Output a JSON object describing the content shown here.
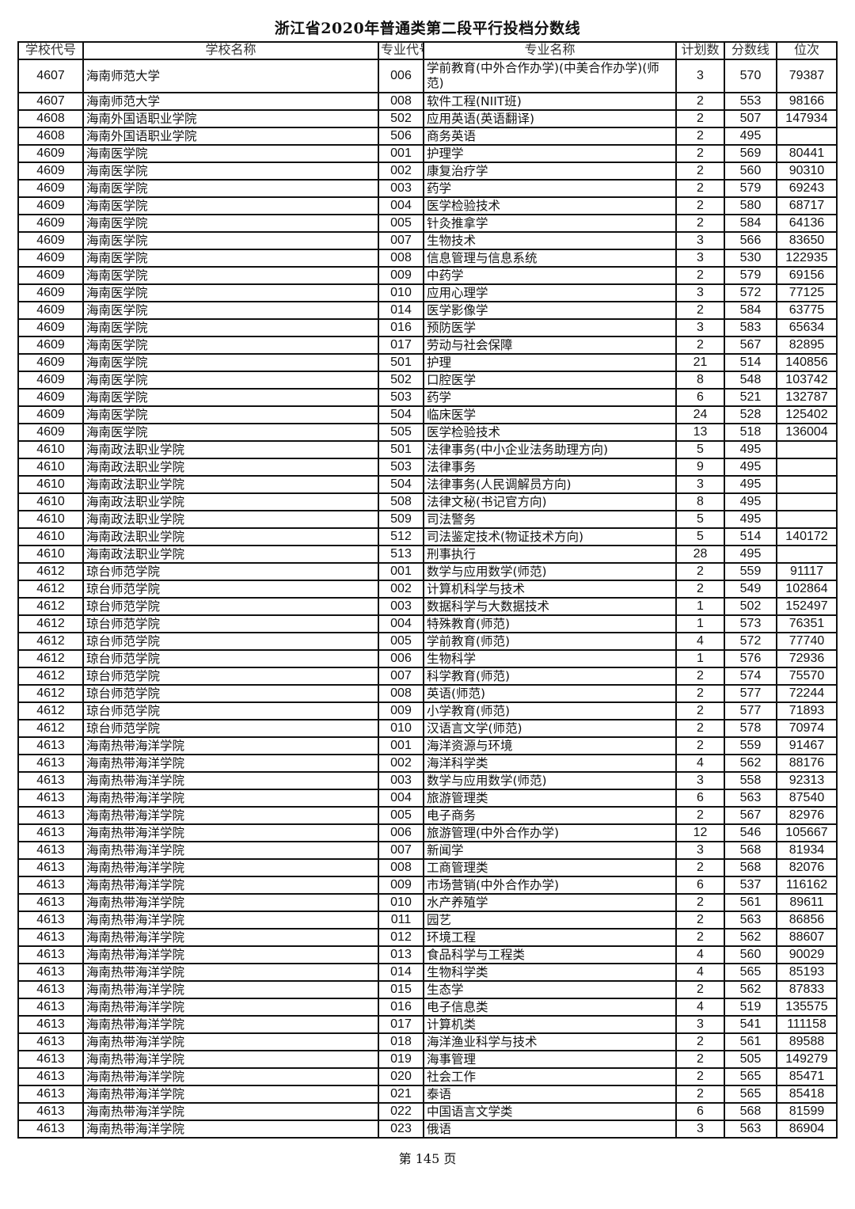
{
  "title": "浙江省2020年普通类第二段平行投档分数线",
  "columns": [
    "学校代号",
    "学校名称",
    "专业代号",
    "专业名称",
    "计划数",
    "分数线",
    "位次"
  ],
  "rows": [
    [
      "4607",
      "海南师范大学",
      "006",
      "学前教育(中外合作办学)(中美合作办学)(师范)",
      "3",
      "570",
      "79387"
    ],
    [
      "4607",
      "海南师范大学",
      "008",
      "软件工程(NIIT班)",
      "2",
      "553",
      "98166"
    ],
    [
      "4608",
      "海南外国语职业学院",
      "502",
      "应用英语(英语翻译)",
      "2",
      "507",
      "147934"
    ],
    [
      "4608",
      "海南外国语职业学院",
      "506",
      "商务英语",
      "2",
      "495",
      ""
    ],
    [
      "4609",
      "海南医学院",
      "001",
      "护理学",
      "2",
      "569",
      "80441"
    ],
    [
      "4609",
      "海南医学院",
      "002",
      "康复治疗学",
      "2",
      "560",
      "90310"
    ],
    [
      "4609",
      "海南医学院",
      "003",
      "药学",
      "2",
      "579",
      "69243"
    ],
    [
      "4609",
      "海南医学院",
      "004",
      "医学检验技术",
      "2",
      "580",
      "68717"
    ],
    [
      "4609",
      "海南医学院",
      "005",
      "针灸推拿学",
      "2",
      "584",
      "64136"
    ],
    [
      "4609",
      "海南医学院",
      "007",
      "生物技术",
      "3",
      "566",
      "83650"
    ],
    [
      "4609",
      "海南医学院",
      "008",
      "信息管理与信息系统",
      "3",
      "530",
      "122935"
    ],
    [
      "4609",
      "海南医学院",
      "009",
      "中药学",
      "2",
      "579",
      "69156"
    ],
    [
      "4609",
      "海南医学院",
      "010",
      "应用心理学",
      "3",
      "572",
      "77125"
    ],
    [
      "4609",
      "海南医学院",
      "014",
      "医学影像学",
      "2",
      "584",
      "63775"
    ],
    [
      "4609",
      "海南医学院",
      "016",
      "预防医学",
      "3",
      "583",
      "65634"
    ],
    [
      "4609",
      "海南医学院",
      "017",
      "劳动与社会保障",
      "2",
      "567",
      "82895"
    ],
    [
      "4609",
      "海南医学院",
      "501",
      "护理",
      "21",
      "514",
      "140856"
    ],
    [
      "4609",
      "海南医学院",
      "502",
      "口腔医学",
      "8",
      "548",
      "103742"
    ],
    [
      "4609",
      "海南医学院",
      "503",
      "药学",
      "6",
      "521",
      "132787"
    ],
    [
      "4609",
      "海南医学院",
      "504",
      "临床医学",
      "24",
      "528",
      "125402"
    ],
    [
      "4609",
      "海南医学院",
      "505",
      "医学检验技术",
      "13",
      "518",
      "136004"
    ],
    [
      "4610",
      "海南政法职业学院",
      "501",
      "法律事务(中小企业法务助理方向)",
      "5",
      "495",
      ""
    ],
    [
      "4610",
      "海南政法职业学院",
      "503",
      "法律事务",
      "9",
      "495",
      ""
    ],
    [
      "4610",
      "海南政法职业学院",
      "504",
      "法律事务(人民调解员方向)",
      "3",
      "495",
      ""
    ],
    [
      "4610",
      "海南政法职业学院",
      "508",
      "法律文秘(书记官方向)",
      "8",
      "495",
      ""
    ],
    [
      "4610",
      "海南政法职业学院",
      "509",
      "司法警务",
      "5",
      "495",
      ""
    ],
    [
      "4610",
      "海南政法职业学院",
      "512",
      "司法鉴定技术(物证技术方向)",
      "5",
      "514",
      "140172"
    ],
    [
      "4610",
      "海南政法职业学院",
      "513",
      "刑事执行",
      "28",
      "495",
      ""
    ],
    [
      "4612",
      "琼台师范学院",
      "001",
      "数学与应用数学(师范)",
      "2",
      "559",
      "91117"
    ],
    [
      "4612",
      "琼台师范学院",
      "002",
      "计算机科学与技术",
      "2",
      "549",
      "102864"
    ],
    [
      "4612",
      "琼台师范学院",
      "003",
      "数据科学与大数据技术",
      "1",
      "502",
      "152497"
    ],
    [
      "4612",
      "琼台师范学院",
      "004",
      "特殊教育(师范)",
      "1",
      "573",
      "76351"
    ],
    [
      "4612",
      "琼台师范学院",
      "005",
      "学前教育(师范)",
      "4",
      "572",
      "77740"
    ],
    [
      "4612",
      "琼台师范学院",
      "006",
      "生物科学",
      "1",
      "576",
      "72936"
    ],
    [
      "4612",
      "琼台师范学院",
      "007",
      "科学教育(师范)",
      "2",
      "574",
      "75570"
    ],
    [
      "4612",
      "琼台师范学院",
      "008",
      "英语(师范)",
      "2",
      "577",
      "72244"
    ],
    [
      "4612",
      "琼台师范学院",
      "009",
      "小学教育(师范)",
      "2",
      "577",
      "71893"
    ],
    [
      "4612",
      "琼台师范学院",
      "010",
      "汉语言文学(师范)",
      "2",
      "578",
      "70974"
    ],
    [
      "4613",
      "海南热带海洋学院",
      "001",
      "海洋资源与环境",
      "2",
      "559",
      "91467"
    ],
    [
      "4613",
      "海南热带海洋学院",
      "002",
      "海洋科学类",
      "4",
      "562",
      "88176"
    ],
    [
      "4613",
      "海南热带海洋学院",
      "003",
      "数学与应用数学(师范)",
      "3",
      "558",
      "92313"
    ],
    [
      "4613",
      "海南热带海洋学院",
      "004",
      "旅游管理类",
      "6",
      "563",
      "87540"
    ],
    [
      "4613",
      "海南热带海洋学院",
      "005",
      "电子商务",
      "2",
      "567",
      "82976"
    ],
    [
      "4613",
      "海南热带海洋学院",
      "006",
      "旅游管理(中外合作办学)",
      "12",
      "546",
      "105667"
    ],
    [
      "4613",
      "海南热带海洋学院",
      "007",
      "新闻学",
      "3",
      "568",
      "81934"
    ],
    [
      "4613",
      "海南热带海洋学院",
      "008",
      "工商管理类",
      "2",
      "568",
      "82076"
    ],
    [
      "4613",
      "海南热带海洋学院",
      "009",
      "市场营销(中外合作办学)",
      "6",
      "537",
      "116162"
    ],
    [
      "4613",
      "海南热带海洋学院",
      "010",
      "水产养殖学",
      "2",
      "561",
      "89611"
    ],
    [
      "4613",
      "海南热带海洋学院",
      "011",
      "园艺",
      "2",
      "563",
      "86856"
    ],
    [
      "4613",
      "海南热带海洋学院",
      "012",
      "环境工程",
      "2",
      "562",
      "88607"
    ],
    [
      "4613",
      "海南热带海洋学院",
      "013",
      "食品科学与工程类",
      "4",
      "560",
      "90029"
    ],
    [
      "4613",
      "海南热带海洋学院",
      "014",
      "生物科学类",
      "4",
      "565",
      "85193"
    ],
    [
      "4613",
      "海南热带海洋学院",
      "015",
      "生态学",
      "2",
      "562",
      "87833"
    ],
    [
      "4613",
      "海南热带海洋学院",
      "016",
      "电子信息类",
      "4",
      "519",
      "135575"
    ],
    [
      "4613",
      "海南热带海洋学院",
      "017",
      "计算机类",
      "3",
      "541",
      "111158"
    ],
    [
      "4613",
      "海南热带海洋学院",
      "018",
      "海洋渔业科学与技术",
      "2",
      "561",
      "89588"
    ],
    [
      "4613",
      "海南热带海洋学院",
      "019",
      "海事管理",
      "2",
      "505",
      "149279"
    ],
    [
      "4613",
      "海南热带海洋学院",
      "020",
      "社会工作",
      "2",
      "565",
      "85471"
    ],
    [
      "4613",
      "海南热带海洋学院",
      "021",
      "泰语",
      "2",
      "565",
      "85418"
    ],
    [
      "4613",
      "海南热带海洋学院",
      "022",
      "中国语言文学类",
      "6",
      "568",
      "81599"
    ],
    [
      "4613",
      "海南热带海洋学院",
      "023",
      "俄语",
      "3",
      "563",
      "86904"
    ]
  ],
  "footer": "第 145 页"
}
